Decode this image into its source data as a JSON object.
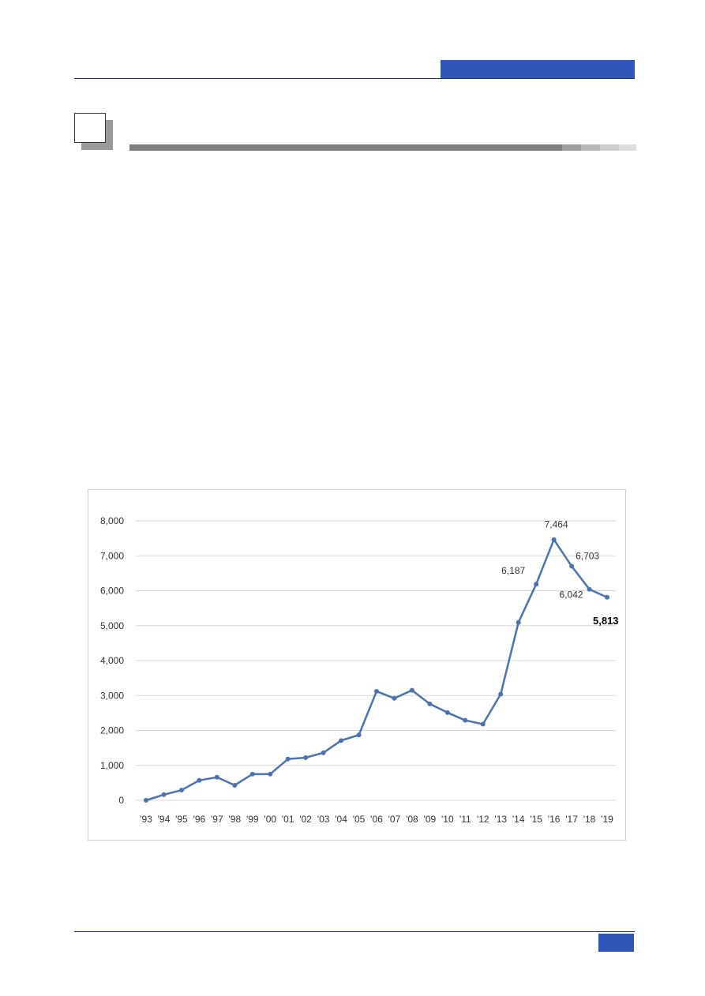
{
  "colors": {
    "accent_blue": "#2f56b8",
    "rule_navy": "#1f2f6b",
    "line_series": "#4a74b0",
    "gridline": "#d9d9d9"
  },
  "chart_data": {
    "type": "line",
    "x": [
      "'93",
      "'94",
      "'95",
      "'96",
      "'97",
      "'98",
      "'99",
      "'00",
      "'01",
      "'02",
      "'03",
      "'04",
      "'05",
      "'06",
      "'07",
      "'08",
      "'09",
      "'10",
      "'11",
      "'12",
      "'13",
      "'14",
      "'15",
      "'16",
      "'17",
      "'18",
      "'19"
    ],
    "series": [
      {
        "values": [
          0,
          160,
          290,
          570,
          660,
          430,
          750,
          750,
          1180,
          1220,
          1360,
          1710,
          1870,
          3120,
          2920,
          3150,
          2760,
          2510,
          2290,
          2180,
          3040,
          5090,
          6187,
          7464,
          6703,
          6042,
          5813
        ]
      }
    ],
    "yticks": [
      "0",
      "1,000",
      "2,000",
      "3,000",
      "4,000",
      "5,000",
      "6,000",
      "7,000",
      "8,000"
    ],
    "ylim": [
      0,
      8000
    ],
    "grid": true,
    "data_labels": [
      {
        "index": 22,
        "text": "6,187",
        "bold": false
      },
      {
        "index": 23,
        "text": "7,464",
        "bold": false
      },
      {
        "index": 24,
        "text": "6,703",
        "bold": false
      },
      {
        "index": 25,
        "text": "6,042",
        "bold": false
      },
      {
        "index": 26,
        "text": "5,813",
        "bold": true
      }
    ]
  }
}
